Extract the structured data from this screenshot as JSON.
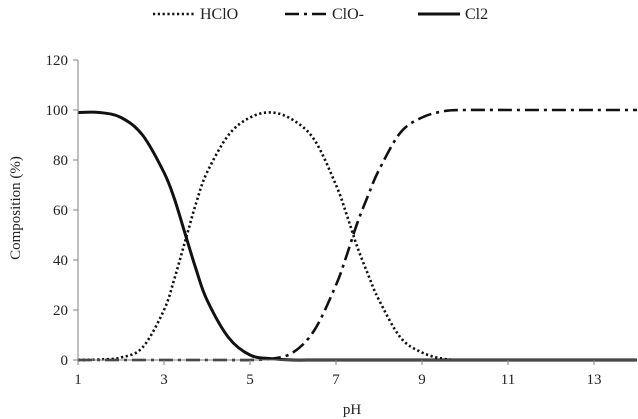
{
  "chart_data": {
    "type": "line",
    "xlabel": "pH",
    "ylabel": "Composition (%)",
    "xlim": [
      1,
      14
    ],
    "ylim": [
      0,
      120
    ],
    "xticks": [
      1,
      3,
      5,
      7,
      9,
      11,
      13
    ],
    "yticks": [
      0,
      20,
      40,
      60,
      80,
      100,
      120
    ],
    "grid": false,
    "legend_position": "top",
    "x": [
      1,
      1.5,
      2,
      2.5,
      3,
      3.25,
      3.5,
      3.75,
      4,
      4.5,
      5,
      5.5,
      6,
      6.5,
      7,
      7.25,
      7.5,
      7.75,
      8,
      8.5,
      9,
      9.5,
      10,
      11,
      12,
      13,
      14
    ],
    "series": [
      {
        "name": "HClO",
        "style": "dotted",
        "values": [
          0,
          0.2,
          1,
          5,
          20,
          33,
          48,
          63,
          75,
          90,
          97,
          99,
          96,
          88,
          70,
          58,
          45,
          34,
          24,
          9,
          3,
          0.5,
          0,
          0,
          0,
          0,
          0
        ]
      },
      {
        "name": "ClO-",
        "style": "dashdot",
        "values": [
          0,
          0,
          0,
          0,
          0,
          0,
          0,
          0,
          0,
          0,
          0,
          0.5,
          3,
          12,
          30,
          42,
          55,
          66,
          76,
          91,
          97,
          99.5,
          100,
          100,
          100,
          100,
          100
        ]
      },
      {
        "name": "Cl2",
        "style": "solid",
        "values": [
          99,
          99,
          97,
          90,
          75,
          64,
          50,
          36,
          24,
          9,
          2,
          0.5,
          0,
          0,
          0,
          0,
          0,
          0,
          0,
          0,
          0,
          0,
          0,
          0,
          0,
          0,
          0
        ]
      }
    ],
    "colors": {
      "line": "#111111",
      "axis": "#808080",
      "text": "#222222"
    }
  }
}
